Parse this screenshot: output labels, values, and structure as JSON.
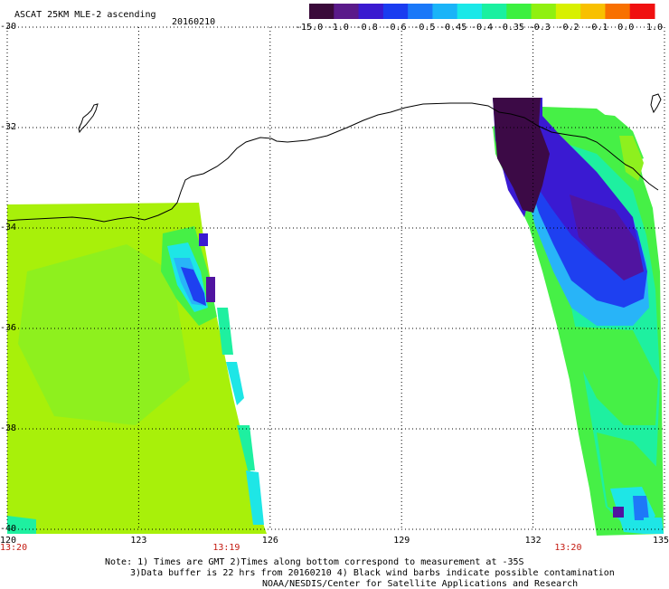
{
  "header": {
    "title": "ASCAT 25KM MLE-2 ascending",
    "date": "20160210"
  },
  "colorbar": {
    "colors": [
      "#3a0a3a",
      "#5a1a8a",
      "#3a1ad0",
      "#1a3cf0",
      "#1a78f8",
      "#1ab4f8",
      "#1ae8e8",
      "#1af0a0",
      "#3cf040",
      "#90f010",
      "#d8f000",
      "#f8c000",
      "#f87000",
      "#f01010"
    ],
    "labels": [
      "-15.0",
      "-1.0",
      "-0.8",
      "-0.6",
      "-0.5",
      "-0.45",
      "-0.4",
      "-0.35",
      "-0.3",
      "-0.2",
      "-0.1",
      "0.0",
      "1.0"
    ]
  },
  "axes": {
    "lat_labels": [
      "-30",
      "-32",
      "-34",
      "-36",
      "-38",
      "-40"
    ],
    "lon_labels": [
      "120",
      "123",
      "126",
      "129",
      "132",
      "135"
    ],
    "lat_range": [
      -30,
      -40
    ],
    "lon_range": [
      120,
      135
    ]
  },
  "time_labels": [
    {
      "lon": 120.0,
      "text": "13:20"
    },
    {
      "lon": 125.0,
      "text": "13:19"
    },
    {
      "lon": 132.8,
      "text": "13:20"
    }
  ],
  "notes": [
    "Note: 1) Times are GMT 2)Times along bottom correspond to measurement at -35S",
    "3)Data buffer is 22 hrs from 20160210 4) Black wind barbs indicate possible contamination",
    "NOAA/NESDIS/Center for Satellite Applications and Research"
  ],
  "colors": {
    "land_outline": "#000000",
    "grid": "#000000",
    "time_text": "#c41a10"
  }
}
